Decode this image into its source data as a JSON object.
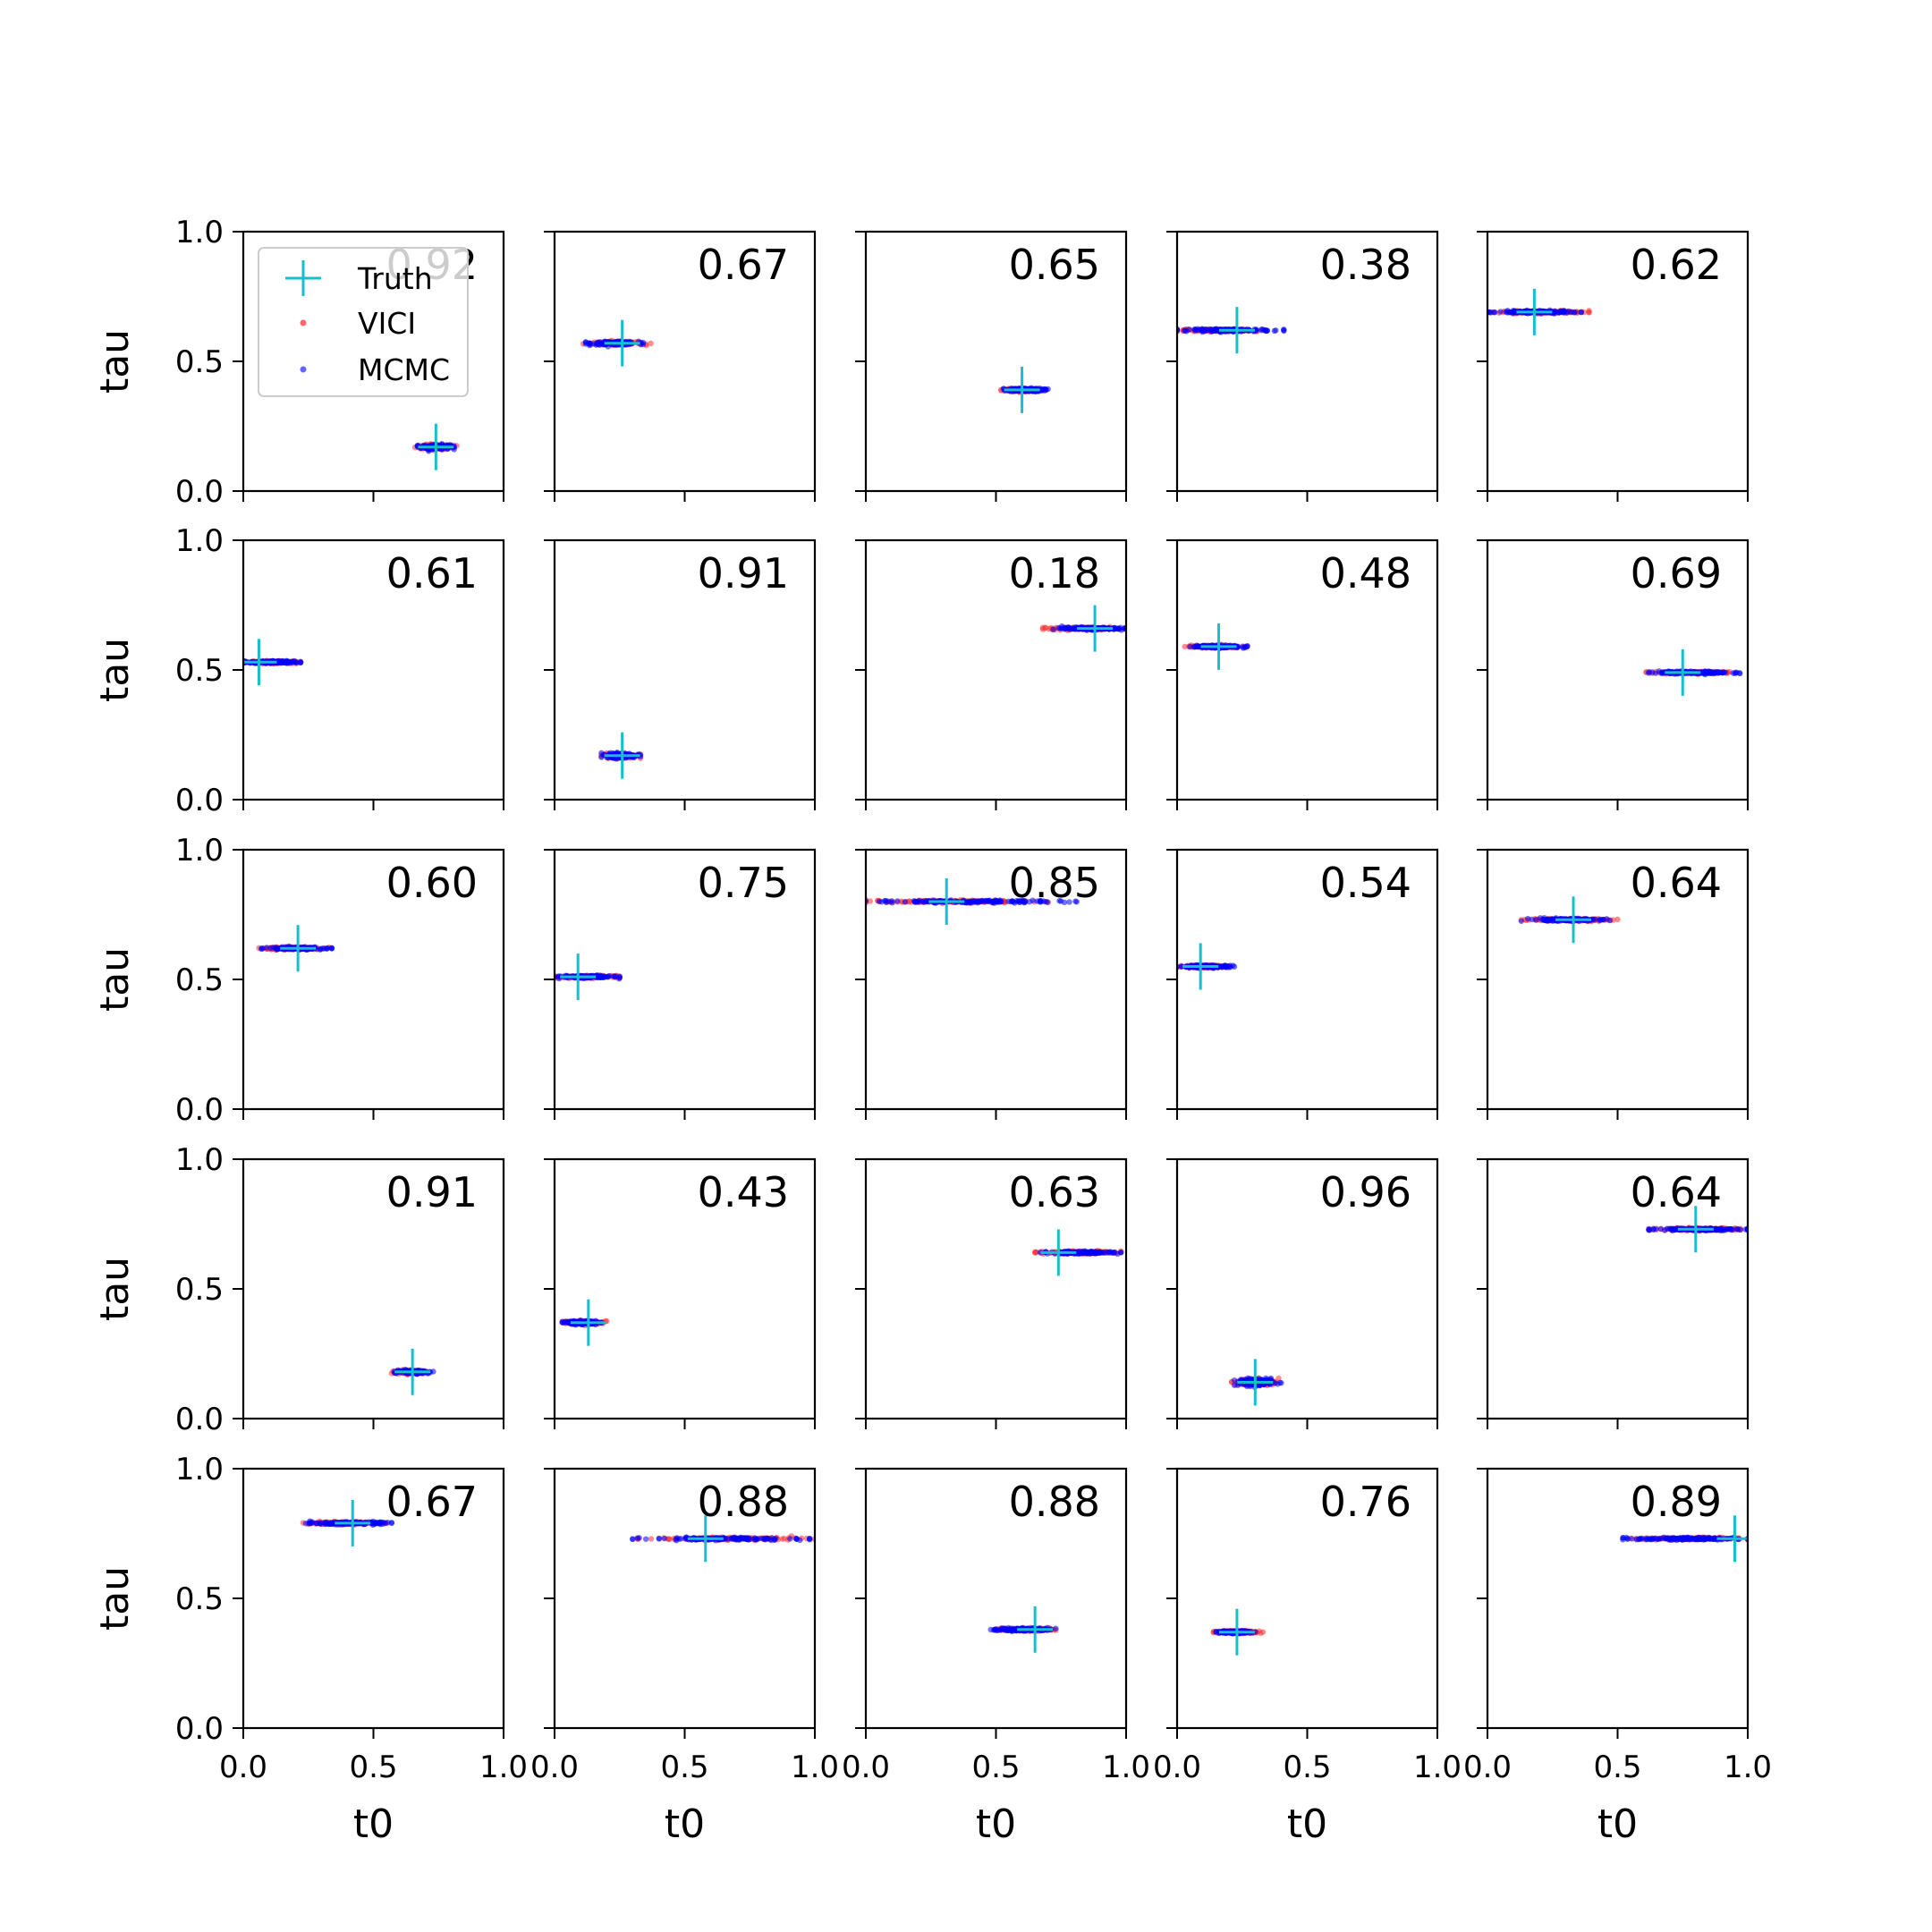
{
  "chart_data": {
    "type": "scatter",
    "layout": {
      "rows": 5,
      "cols": 5
    },
    "xlabel": "t0",
    "ylabel": "tau",
    "xlim": [
      0.0,
      1.0
    ],
    "ylim": [
      0.0,
      1.0
    ],
    "xticks": [
      0.0,
      0.5,
      1.0
    ],
    "yticks": [
      0.0,
      0.5,
      1.0
    ],
    "xtick_labels": [
      "0.0",
      "0.5",
      "1.0"
    ],
    "ytick_labels": [
      "0.0",
      "0.5",
      "1.0"
    ],
    "grid": false,
    "legend": {
      "position": "top-left",
      "panel": 0,
      "entries": [
        {
          "label": "Truth",
          "marker": "plus",
          "color": "#17becf"
        },
        {
          "label": "VICI",
          "marker": "dot",
          "color": "#ff0000"
        },
        {
          "label": "MCMC",
          "marker": "dot",
          "color": "#0000ff"
        }
      ]
    },
    "series_colors": {
      "Truth": "#17becf",
      "VICI": "#ff3333",
      "MCMC": "#0000ff"
    },
    "panels": [
      {
        "score": "0.92",
        "truth": [
          0.74,
          0.17
        ],
        "vici": [
          0.66,
          0.82
        ],
        "mcmc": [
          0.67,
          0.81
        ],
        "tau_spread": 0.012
      },
      {
        "score": "0.67",
        "truth": [
          0.26,
          0.57
        ],
        "vici": [
          0.11,
          0.37
        ],
        "mcmc": [
          0.12,
          0.34
        ],
        "tau_spread": 0.008
      },
      {
        "score": "0.65",
        "truth": [
          0.6,
          0.39
        ],
        "vici": [
          0.52,
          0.67
        ],
        "mcmc": [
          0.53,
          0.7
        ],
        "tau_spread": 0.008
      },
      {
        "score": "0.38",
        "truth": [
          0.23,
          0.62
        ],
        "vici": [
          0.0,
          0.33
        ],
        "mcmc": [
          0.0,
          0.41
        ],
        "tau_spread": 0.006
      },
      {
        "score": "0.62",
        "truth": [
          0.18,
          0.69
        ],
        "vici": [
          0.0,
          0.39
        ],
        "mcmc": [
          0.0,
          0.36
        ],
        "tau_spread": 0.006
      },
      {
        "score": "0.61",
        "truth": [
          0.06,
          0.53
        ],
        "vici": [
          0.0,
          0.22
        ],
        "mcmc": [
          0.0,
          0.22
        ],
        "tau_spread": 0.006
      },
      {
        "score": "0.91",
        "truth": [
          0.26,
          0.17
        ],
        "vici": [
          0.18,
          0.33
        ],
        "mcmc": [
          0.18,
          0.33
        ],
        "tau_spread": 0.012
      },
      {
        "score": "0.18",
        "truth": [
          0.88,
          0.66
        ],
        "vici": [
          0.68,
          1.0
        ],
        "mcmc": [
          0.72,
          1.0
        ],
        "tau_spread": 0.006
      },
      {
        "score": "0.48",
        "truth": [
          0.16,
          0.59
        ],
        "vici": [
          0.03,
          0.27
        ],
        "mcmc": [
          0.05,
          0.27
        ],
        "tau_spread": 0.006
      },
      {
        "score": "0.69",
        "truth": [
          0.75,
          0.49
        ],
        "vici": [
          0.61,
          0.93
        ],
        "mcmc": [
          0.62,
          0.97
        ],
        "tau_spread": 0.006
      },
      {
        "score": "0.60",
        "truth": [
          0.21,
          0.62
        ],
        "vici": [
          0.06,
          0.33
        ],
        "mcmc": [
          0.07,
          0.34
        ],
        "tau_spread": 0.006
      },
      {
        "score": "0.75",
        "truth": [
          0.09,
          0.51
        ],
        "vici": [
          0.0,
          0.25
        ],
        "mcmc": [
          0.0,
          0.25
        ],
        "tau_spread": 0.006
      },
      {
        "score": "0.85",
        "truth": [
          0.31,
          0.8
        ],
        "vici": [
          0.0,
          0.7
        ],
        "mcmc": [
          0.0,
          0.81
        ],
        "tau_spread": 0.006
      },
      {
        "score": "0.54",
        "truth": [
          0.09,
          0.55
        ],
        "vici": [
          0.0,
          0.2
        ],
        "mcmc": [
          0.0,
          0.22
        ],
        "tau_spread": 0.006
      },
      {
        "score": "0.64",
        "truth": [
          0.33,
          0.73
        ],
        "vici": [
          0.13,
          0.5
        ],
        "mcmc": [
          0.13,
          0.47
        ],
        "tau_spread": 0.006
      },
      {
        "score": "0.91",
        "truth": [
          0.65,
          0.18
        ],
        "vici": [
          0.57,
          0.71
        ],
        "mcmc": [
          0.58,
          0.73
        ],
        "tau_spread": 0.008
      },
      {
        "score": "0.43",
        "truth": [
          0.13,
          0.37
        ],
        "vici": [
          0.03,
          0.2
        ],
        "mcmc": [
          0.03,
          0.18
        ],
        "tau_spread": 0.008
      },
      {
        "score": "0.63",
        "truth": [
          0.74,
          0.64
        ],
        "vici": [
          0.65,
          0.98
        ],
        "mcmc": [
          0.67,
          0.98
        ],
        "tau_spread": 0.006
      },
      {
        "score": "0.96",
        "truth": [
          0.3,
          0.14
        ],
        "vici": [
          0.21,
          0.39
        ],
        "mcmc": [
          0.22,
          0.4
        ],
        "tau_spread": 0.016
      },
      {
        "score": "0.64",
        "truth": [
          0.8,
          0.73
        ],
        "vici": [
          0.62,
          1.0
        ],
        "mcmc": [
          0.62,
          1.0
        ],
        "tau_spread": 0.006
      },
      {
        "score": "0.67",
        "truth": [
          0.42,
          0.79
        ],
        "vici": [
          0.23,
          0.55
        ],
        "mcmc": [
          0.24,
          0.57
        ],
        "tau_spread": 0.006
      },
      {
        "score": "0.88",
        "truth": [
          0.58,
          0.73
        ],
        "vici": [
          0.32,
          1.0
        ],
        "mcmc": [
          0.3,
          0.98
        ],
        "tau_spread": 0.006
      },
      {
        "score": "0.88",
        "truth": [
          0.65,
          0.38
        ],
        "vici": [
          0.5,
          0.73
        ],
        "mcmc": [
          0.48,
          0.73
        ],
        "tau_spread": 0.007
      },
      {
        "score": "0.76",
        "truth": [
          0.23,
          0.37
        ],
        "vici": [
          0.14,
          0.33
        ],
        "mcmc": [
          0.15,
          0.3
        ],
        "tau_spread": 0.006
      },
      {
        "score": "0.89",
        "truth": [
          0.95,
          0.73
        ],
        "vici": [
          0.55,
          1.0
        ],
        "mcmc": [
          0.52,
          1.0
        ],
        "tau_spread": 0.006
      }
    ]
  }
}
